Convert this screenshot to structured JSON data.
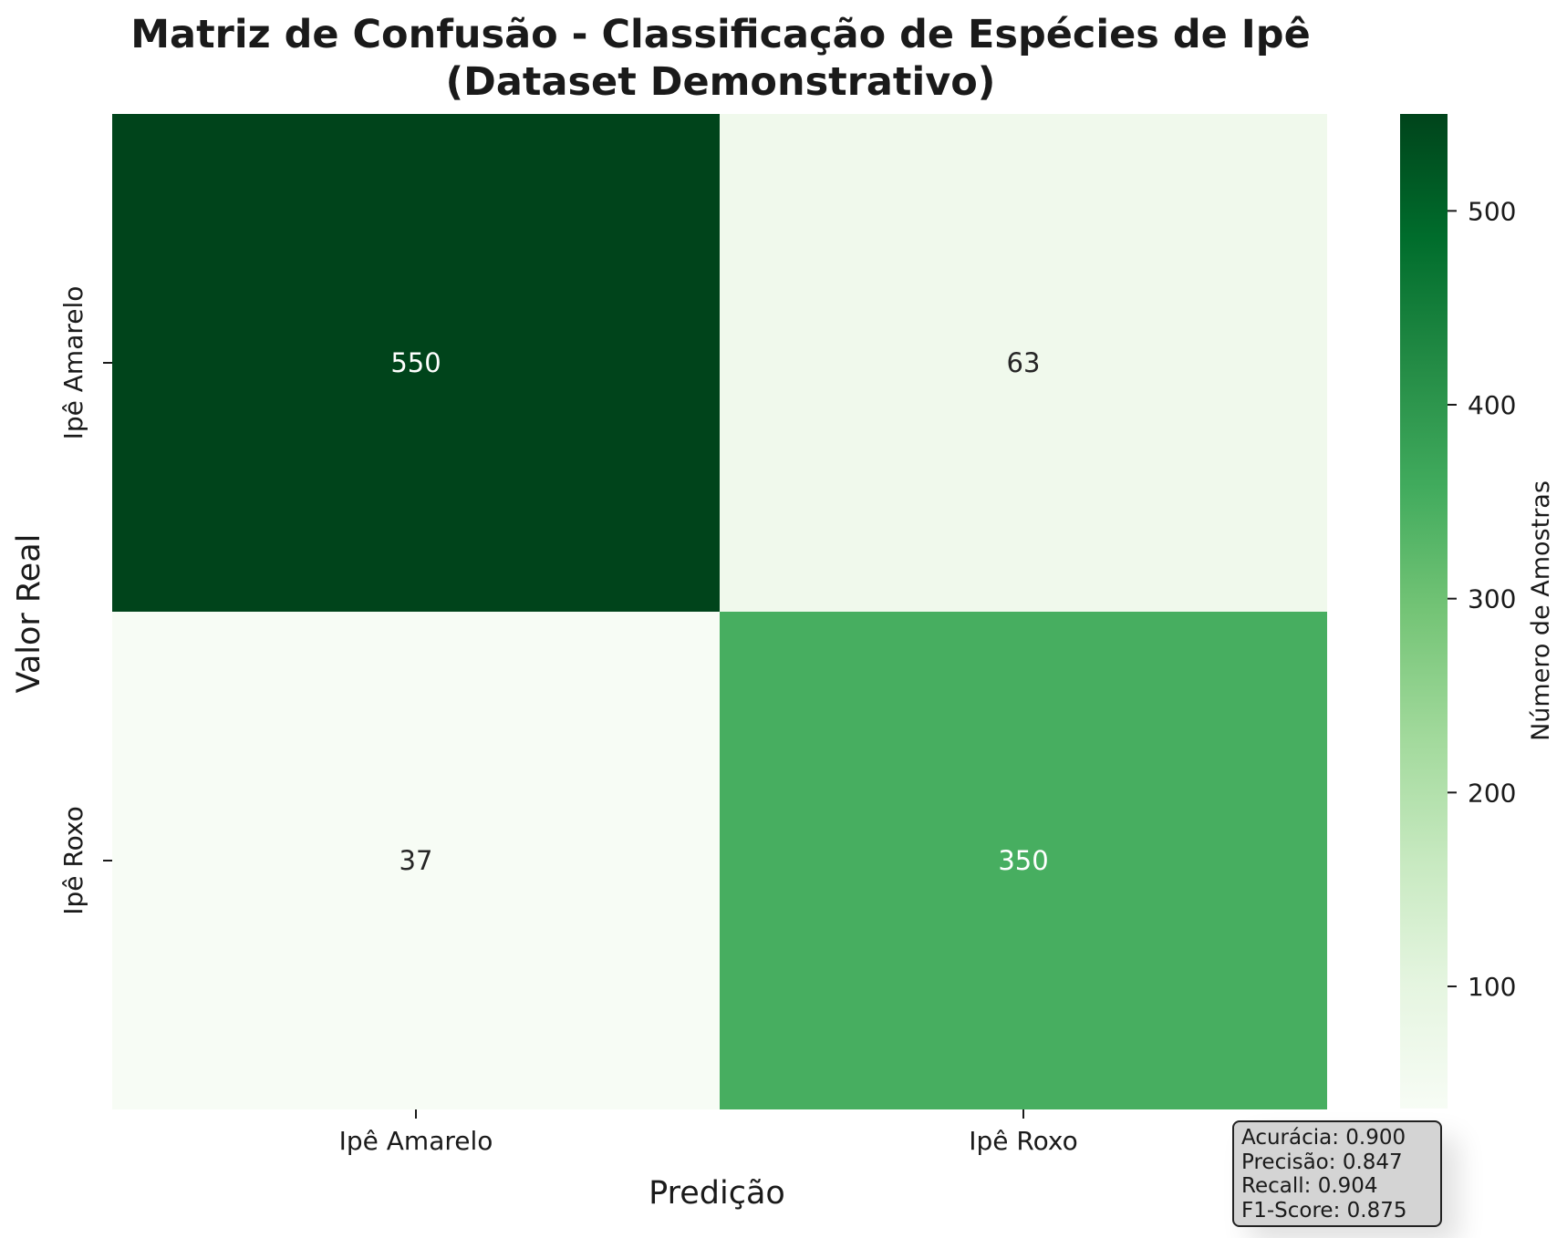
{
  "chart_data": {
    "type": "heatmap",
    "title": [
      "Matriz de Confusão - Classificação de Espécies de Ipê",
      "(Dataset Demonstrativo)"
    ],
    "xlabel": "Predição",
    "ylabel": "Valor Real",
    "x_categories": [
      "Ipê Amarelo",
      "Ipê Roxo"
    ],
    "y_categories": [
      "Ipê Amarelo",
      "Ipê Roxo"
    ],
    "matrix": [
      [
        550,
        63
      ],
      [
        37,
        350
      ]
    ],
    "colorbar": {
      "label": "Número de Amostras",
      "range": [
        37,
        550
      ],
      "ticks": [
        100,
        200,
        300,
        400,
        500
      ],
      "colormap": "Greens",
      "colors": [
        "#f7fcf5",
        "#e5f5e0",
        "#c7e9c0",
        "#a1d99b",
        "#74c476",
        "#41ab5d",
        "#238b45",
        "#006d2c",
        "#00441b"
      ]
    },
    "metrics": [
      {
        "label": "Acurácia",
        "value": "0.900"
      },
      {
        "label": "Precisão",
        "value": "0.847"
      },
      {
        "label": "Recall",
        "value": "0.904"
      },
      {
        "label": "F1-Score",
        "value": "0.875"
      }
    ]
  }
}
